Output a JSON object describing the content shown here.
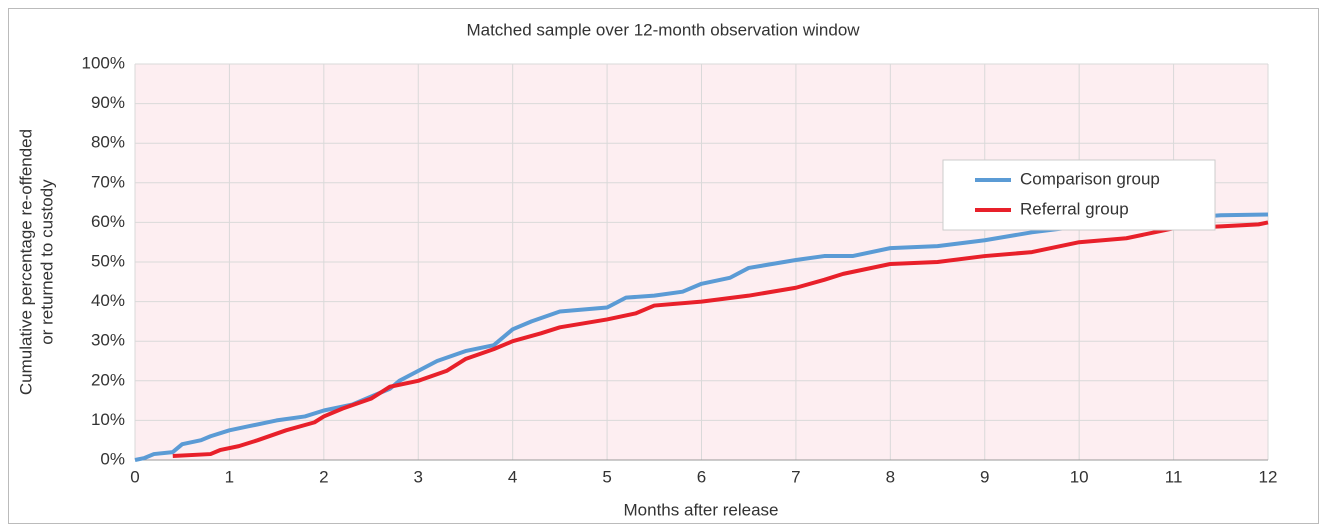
{
  "chart_data": {
    "type": "line",
    "title": "Matched sample over 12-month observation window",
    "x_label": "Months after release",
    "y_label": [
      "Cumulative percentage re-offended",
      "or returned to custody"
    ],
    "xlim": [
      0,
      12
    ],
    "xticks": [
      0,
      1,
      2,
      3,
      4,
      5,
      6,
      7,
      8,
      9,
      10,
      11,
      12
    ],
    "ylim": [
      0,
      100
    ],
    "yticks": [
      {
        "value": 0,
        "label": "0%"
      },
      {
        "value": 10,
        "label": "10%"
      },
      {
        "value": 20,
        "label": "20%"
      },
      {
        "value": 30,
        "label": "30%"
      },
      {
        "value": 40,
        "label": "40%"
      },
      {
        "value": 50,
        "label": "50%"
      },
      {
        "value": 60,
        "label": "60%"
      },
      {
        "value": 70,
        "label": "70%"
      },
      {
        "value": 80,
        "label": "80%"
      },
      {
        "value": 90,
        "label": "90%"
      },
      {
        "value": 100,
        "label": "100%"
      }
    ],
    "grid": true,
    "legend": "upper right",
    "series": [
      {
        "name": "Comparison group",
        "color": "#5b9bd5",
        "x": [
          0,
          0.1,
          0.2,
          0.4,
          0.5,
          0.7,
          0.8,
          1,
          1.2,
          1.5,
          1.8,
          2,
          2.3,
          2.5,
          2.7,
          2.8,
          3,
          3.2,
          3.5,
          3.8,
          4,
          4.2,
          4.5,
          5,
          5.2,
          5.5,
          5.8,
          6,
          6.3,
          6.5,
          7,
          7.3,
          7.6,
          8,
          8.5,
          9,
          9.5,
          10,
          10.5,
          11,
          11.5,
          12
        ],
        "values": [
          0,
          0.5,
          1.5,
          2,
          4,
          5,
          6,
          7.5,
          8.5,
          10,
          11,
          12.5,
          14,
          16,
          18,
          20,
          22.5,
          25,
          27.5,
          29,
          33,
          35,
          37.5,
          38.5,
          41,
          41.5,
          42.5,
          44.5,
          46,
          48.5,
          50.5,
          51.5,
          51.5,
          53.5,
          54,
          55.5,
          57.5,
          59,
          60,
          61,
          61.8,
          62
        ]
      },
      {
        "name": "Referral group",
        "color": "#e8202a",
        "x": [
          0.4,
          0.8,
          0.9,
          1.1,
          1.3,
          1.6,
          1.9,
          2,
          2.2,
          2.5,
          2.7,
          3,
          3.3,
          3.5,
          3.8,
          4,
          4.3,
          4.5,
          5,
          5.3,
          5.5,
          6,
          6.5,
          7,
          7.3,
          7.5,
          8,
          8.5,
          9,
          9.5,
          10,
          10.5,
          11,
          11.5,
          11.9,
          12
        ],
        "values": [
          1,
          1.5,
          2.5,
          3.5,
          5,
          7.5,
          9.5,
          11,
          13,
          15.5,
          18.5,
          20,
          22.5,
          25.5,
          28,
          30,
          32,
          33.5,
          35.5,
          37,
          39,
          40,
          41.5,
          43.5,
          45.5,
          47,
          49.5,
          50,
          51.5,
          52.5,
          55,
          56,
          58.5,
          59,
          59.5,
          60
        ]
      }
    ]
  }
}
